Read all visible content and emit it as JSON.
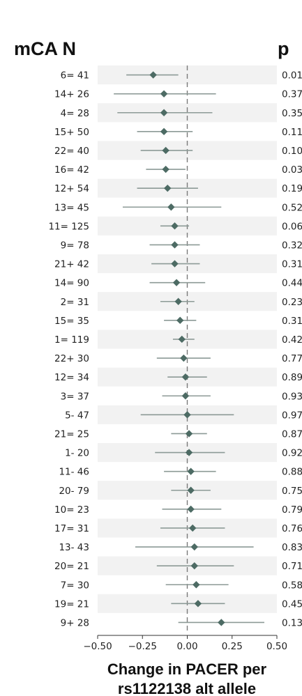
{
  "chart_data": {
    "type": "forest",
    "headers": {
      "label": "mCA  N",
      "p": "p"
    },
    "xlabel_lines": [
      "Change in PACER per",
      "rs1122138 alt allele"
    ],
    "xlim": [
      -0.5,
      0.5
    ],
    "xticks": [
      "−0.50",
      "−0.25",
      "0.00",
      "0.25",
      "0.50"
    ],
    "reference_line": 0,
    "point_color": "#4d6b64",
    "ci_color": "#8c9a96",
    "band_color": "#f2f2f2",
    "rows": [
      {
        "label": "6=  41",
        "est": -0.19,
        "lo": -0.34,
        "hi": -0.05,
        "p": "0.01"
      },
      {
        "label": "14+  26",
        "est": -0.13,
        "lo": -0.41,
        "hi": 0.16,
        "p": "0.37"
      },
      {
        "label": "4=  28",
        "est": -0.13,
        "lo": -0.39,
        "hi": 0.14,
        "p": "0.35"
      },
      {
        "label": "15+  50",
        "est": -0.13,
        "lo": -0.28,
        "hi": 0.03,
        "p": "0.11"
      },
      {
        "label": "22=  40",
        "est": -0.12,
        "lo": -0.26,
        "hi": 0.03,
        "p": "0.10"
      },
      {
        "label": "16=  42",
        "est": -0.12,
        "lo": -0.23,
        "hi": -0.01,
        "p": "0.03"
      },
      {
        "label": "12+  54",
        "est": -0.11,
        "lo": -0.28,
        "hi": 0.06,
        "p": "0.19"
      },
      {
        "label": "13=  45",
        "est": -0.09,
        "lo": -0.36,
        "hi": 0.19,
        "p": "0.52"
      },
      {
        "label": "11=  125",
        "est": -0.07,
        "lo": -0.15,
        "hi": 0.01,
        "p": "0.06"
      },
      {
        "label": "9=  78",
        "est": -0.07,
        "lo": -0.21,
        "hi": 0.07,
        "p": "0.32"
      },
      {
        "label": "21+  42",
        "est": -0.07,
        "lo": -0.2,
        "hi": 0.07,
        "p": "0.31"
      },
      {
        "label": "14=  90",
        "est": -0.06,
        "lo": -0.21,
        "hi": 0.1,
        "p": "0.44"
      },
      {
        "label": "2=  31",
        "est": -0.05,
        "lo": -0.15,
        "hi": 0.04,
        "p": "0.23"
      },
      {
        "label": "15=  35",
        "est": -0.04,
        "lo": -0.13,
        "hi": 0.05,
        "p": "0.31"
      },
      {
        "label": "1=  119",
        "est": -0.03,
        "lo": -0.08,
        "hi": 0.04,
        "p": "0.42"
      },
      {
        "label": "22+  30",
        "est": -0.02,
        "lo": -0.17,
        "hi": 0.13,
        "p": "0.77"
      },
      {
        "label": "12=  34",
        "est": -0.01,
        "lo": -0.11,
        "hi": 0.11,
        "p": "0.89"
      },
      {
        "label": "3=  37",
        "est": -0.01,
        "lo": -0.14,
        "hi": 0.13,
        "p": "0.93"
      },
      {
        "label": "5-  47",
        "est": 0.0,
        "lo": -0.26,
        "hi": 0.26,
        "p": "0.97"
      },
      {
        "label": "21=  25",
        "est": 0.01,
        "lo": -0.09,
        "hi": 0.11,
        "p": "0.87"
      },
      {
        "label": "1-  20",
        "est": 0.01,
        "lo": -0.18,
        "hi": 0.21,
        "p": "0.92"
      },
      {
        "label": "11-  46",
        "est": 0.02,
        "lo": -0.13,
        "hi": 0.16,
        "p": "0.88"
      },
      {
        "label": "20-  79",
        "est": 0.02,
        "lo": -0.09,
        "hi": 0.13,
        "p": "0.75"
      },
      {
        "label": "10=  23",
        "est": 0.02,
        "lo": -0.14,
        "hi": 0.19,
        "p": "0.79"
      },
      {
        "label": "17=  31",
        "est": 0.03,
        "lo": -0.15,
        "hi": 0.21,
        "p": "0.76"
      },
      {
        "label": "13-  43",
        "est": 0.04,
        "lo": -0.29,
        "hi": 0.37,
        "p": "0.83"
      },
      {
        "label": "20=  21",
        "est": 0.04,
        "lo": -0.17,
        "hi": 0.26,
        "p": "0.71"
      },
      {
        "label": "7=  30",
        "est": 0.05,
        "lo": -0.12,
        "hi": 0.23,
        "p": "0.58"
      },
      {
        "label": "19=  21",
        "est": 0.06,
        "lo": -0.09,
        "hi": 0.21,
        "p": "0.45"
      },
      {
        "label": "9+  28",
        "est": 0.19,
        "lo": -0.05,
        "hi": 0.43,
        "p": "0.13"
      }
    ]
  }
}
